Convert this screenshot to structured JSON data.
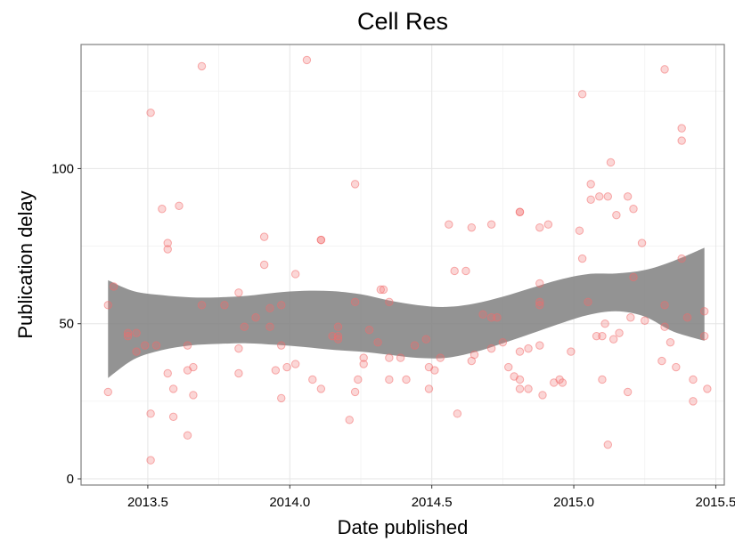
{
  "chart_data": {
    "type": "scatter",
    "title": "Cell Res",
    "xlabel": "Date published",
    "ylabel": "Publication delay",
    "xlim": [
      2013.265,
      2015.53
    ],
    "ylim": [
      -2,
      140
    ],
    "x_ticks": [
      2013.5,
      2014.0,
      2014.5,
      2015.0,
      2015.5
    ],
    "x_tick_labels": [
      "2013.5",
      "2014.0",
      "2014.5",
      "2015.0",
      "2015.5"
    ],
    "y_ticks": [
      0,
      50,
      100
    ],
    "y_tick_labels": [
      "0",
      "50",
      "100"
    ],
    "grid": true,
    "point_color": "#f26b6b",
    "band_color": "#808080",
    "series": [
      {
        "values": [
          [
            2013.36,
            28
          ],
          [
            2013.36,
            56
          ],
          [
            2013.38,
            62
          ],
          [
            2013.43,
            46
          ],
          [
            2013.43,
            47
          ],
          [
            2013.46,
            41
          ],
          [
            2013.46,
            47
          ],
          [
            2013.49,
            43
          ],
          [
            2013.51,
            118
          ],
          [
            2013.51,
            21
          ],
          [
            2013.51,
            6
          ],
          [
            2013.53,
            43
          ],
          [
            2013.55,
            87
          ],
          [
            2013.57,
            76
          ],
          [
            2013.57,
            74
          ],
          [
            2013.57,
            34
          ],
          [
            2013.59,
            29
          ],
          [
            2013.59,
            20
          ],
          [
            2013.61,
            88
          ],
          [
            2013.64,
            43
          ],
          [
            2013.64,
            35
          ],
          [
            2013.64,
            14
          ],
          [
            2013.66,
            36
          ],
          [
            2013.66,
            27
          ],
          [
            2013.69,
            133
          ],
          [
            2013.69,
            56
          ],
          [
            2013.77,
            56
          ],
          [
            2013.82,
            60
          ],
          [
            2013.82,
            42
          ],
          [
            2013.82,
            34
          ],
          [
            2013.84,
            49
          ],
          [
            2013.88,
            52
          ],
          [
            2013.91,
            78
          ],
          [
            2013.91,
            69
          ],
          [
            2013.93,
            55
          ],
          [
            2013.93,
            49
          ],
          [
            2013.95,
            35
          ],
          [
            2013.97,
            56
          ],
          [
            2013.97,
            43
          ],
          [
            2013.97,
            26
          ],
          [
            2013.99,
            36
          ],
          [
            2014.02,
            66
          ],
          [
            2014.02,
            37
          ],
          [
            2014.06,
            135
          ],
          [
            2014.08,
            32
          ],
          [
            2014.11,
            77
          ],
          [
            2014.11,
            77
          ],
          [
            2014.11,
            29
          ],
          [
            2014.15,
            46
          ],
          [
            2014.17,
            49
          ],
          [
            2014.17,
            46
          ],
          [
            2014.17,
            45
          ],
          [
            2014.21,
            19
          ],
          [
            2014.23,
            95
          ],
          [
            2014.23,
            57
          ],
          [
            2014.23,
            28
          ],
          [
            2014.24,
            32
          ],
          [
            2014.26,
            39
          ],
          [
            2014.26,
            37
          ],
          [
            2014.28,
            48
          ],
          [
            2014.31,
            44
          ],
          [
            2014.32,
            61
          ],
          [
            2014.33,
            61
          ],
          [
            2014.35,
            57
          ],
          [
            2014.35,
            39
          ],
          [
            2014.35,
            32
          ],
          [
            2014.39,
            39
          ],
          [
            2014.41,
            32
          ],
          [
            2014.44,
            43
          ],
          [
            2014.48,
            45
          ],
          [
            2014.49,
            36
          ],
          [
            2014.49,
            29
          ],
          [
            2014.51,
            35
          ],
          [
            2014.53,
            39
          ],
          [
            2014.56,
            82
          ],
          [
            2014.58,
            67
          ],
          [
            2014.59,
            21
          ],
          [
            2014.62,
            67
          ],
          [
            2014.64,
            81
          ],
          [
            2014.64,
            38
          ],
          [
            2014.65,
            40
          ],
          [
            2014.68,
            53
          ],
          [
            2014.71,
            82
          ],
          [
            2014.71,
            52
          ],
          [
            2014.71,
            42
          ],
          [
            2014.73,
            52
          ],
          [
            2014.75,
            44
          ],
          [
            2014.77,
            36
          ],
          [
            2014.79,
            33
          ],
          [
            2014.81,
            86
          ],
          [
            2014.81,
            86
          ],
          [
            2014.81,
            41
          ],
          [
            2014.81,
            32
          ],
          [
            2014.81,
            29
          ],
          [
            2014.84,
            42
          ],
          [
            2014.84,
            29
          ],
          [
            2014.88,
            81
          ],
          [
            2014.88,
            63
          ],
          [
            2014.88,
            57
          ],
          [
            2014.88,
            56
          ],
          [
            2014.88,
            43
          ],
          [
            2014.89,
            27
          ],
          [
            2014.91,
            82
          ],
          [
            2014.93,
            31
          ],
          [
            2014.95,
            32
          ],
          [
            2014.96,
            31
          ],
          [
            2014.99,
            41
          ],
          [
            2015.02,
            80
          ],
          [
            2015.03,
            124
          ],
          [
            2015.03,
            71
          ],
          [
            2015.05,
            57
          ],
          [
            2015.06,
            95
          ],
          [
            2015.06,
            90
          ],
          [
            2015.08,
            46
          ],
          [
            2015.09,
            91
          ],
          [
            2015.1,
            46
          ],
          [
            2015.1,
            32
          ],
          [
            2015.11,
            50
          ],
          [
            2015.12,
            91
          ],
          [
            2015.12,
            11
          ],
          [
            2015.13,
            102
          ],
          [
            2015.14,
            45
          ],
          [
            2015.15,
            85
          ],
          [
            2015.16,
            47
          ],
          [
            2015.19,
            91
          ],
          [
            2015.19,
            28
          ],
          [
            2015.2,
            52
          ],
          [
            2015.21,
            87
          ],
          [
            2015.21,
            65
          ],
          [
            2015.24,
            76
          ],
          [
            2015.25,
            51
          ],
          [
            2015.31,
            38
          ],
          [
            2015.32,
            132
          ],
          [
            2015.32,
            56
          ],
          [
            2015.32,
            49
          ],
          [
            2015.34,
            44
          ],
          [
            2015.36,
            36
          ],
          [
            2015.38,
            113
          ],
          [
            2015.38,
            109
          ],
          [
            2015.38,
            71
          ],
          [
            2015.4,
            52
          ],
          [
            2015.42,
            32
          ],
          [
            2015.42,
            25
          ],
          [
            2015.46,
            54
          ],
          [
            2015.46,
            46
          ],
          [
            2015.47,
            29
          ]
        ]
      }
    ],
    "confidence_band": {
      "x": [
        2013.36,
        2013.45,
        2013.55,
        2013.65,
        2013.75,
        2013.85,
        2013.95,
        2014.05,
        2014.15,
        2014.25,
        2014.35,
        2014.45,
        2014.55,
        2014.65,
        2014.75,
        2014.85,
        2014.95,
        2015.05,
        2015.15,
        2015.25,
        2015.35,
        2015.46
      ],
      "upper": [
        64,
        60.5,
        59.2,
        58.5,
        58.5,
        59,
        60,
        60.6,
        60.5,
        59.5,
        57.5,
        56,
        55.4,
        56.5,
        58.7,
        61.5,
        64.2,
        66,
        66.2,
        67.3,
        70.2,
        74.5
      ],
      "lower": [
        32.5,
        38.5,
        41.5,
        43,
        43.5,
        43.7,
        43.2,
        42.5,
        41.6,
        41,
        40,
        39,
        39,
        40.8,
        43.7,
        46.8,
        50,
        52.8,
        54,
        52.3,
        47.5,
        44.5
      ]
    }
  }
}
